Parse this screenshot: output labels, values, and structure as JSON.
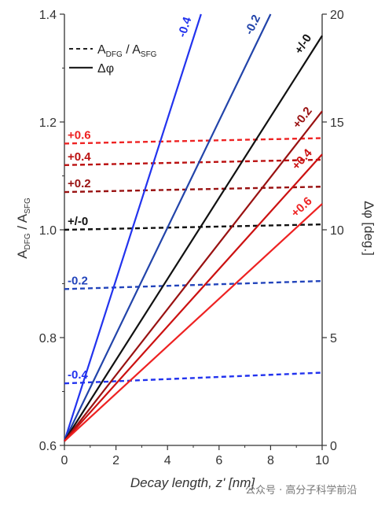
{
  "chart_data": {
    "type": "line",
    "xlabel": "Decay length, z' [nm]",
    "ylabel_left": "A_DFG / A_SFG",
    "ylabel_right": "Δφ [deg.]",
    "xlim": [
      0,
      10
    ],
    "ylim_left": [
      0.6,
      1.4
    ],
    "ylim_right": [
      0,
      20
    ],
    "x_ticks": [
      "0",
      "2",
      "4",
      "6",
      "8",
      "10"
    ],
    "y_ticks_left": [
      "0.6",
      "0.8",
      "1.0",
      "1.2",
      "1.4"
    ],
    "y_ticks_right": [
      "0",
      "5",
      "10",
      "15",
      "20"
    ],
    "legend": {
      "placement": "top-left",
      "entries": [
        {
          "style": "dashed",
          "label": "A_DFG / A_SFG"
        },
        {
          "style": "solid",
          "label": "Δφ"
        }
      ]
    },
    "amplitude_series": [
      {
        "name": "+0.6",
        "color": "#ee2222",
        "x": [
          0,
          10
        ],
        "y": [
          1.16,
          1.17
        ]
      },
      {
        "name": "+0.4",
        "color": "#bb1111",
        "x": [
          0,
          10
        ],
        "y": [
          1.12,
          1.13
        ]
      },
      {
        "name": "+0.2",
        "color": "#991111",
        "x": [
          0,
          10
        ],
        "y": [
          1.07,
          1.08
        ]
      },
      {
        "name": "+/-0",
        "color": "#111111",
        "x": [
          0,
          10
        ],
        "y": [
          1.0,
          1.01
        ]
      },
      {
        "name": "-0.2",
        "color": "#2244bb",
        "x": [
          0,
          10
        ],
        "y": [
          0.89,
          0.905
        ]
      },
      {
        "name": "-0.4",
        "color": "#2233ee",
        "x": [
          0,
          10
        ],
        "y": [
          0.715,
          0.735
        ]
      }
    ],
    "phase_series": [
      {
        "name": "-0.4",
        "color": "#2233ee",
        "x": [
          0,
          5.3
        ],
        "y": [
          0.2,
          20
        ]
      },
      {
        "name": "-0.2",
        "color": "#2244aa",
        "x": [
          0,
          8.0
        ],
        "y": [
          0.2,
          20
        ]
      },
      {
        "name": "+/-0",
        "color": "#111111",
        "x": [
          0,
          10
        ],
        "y": [
          0.2,
          19.0
        ]
      },
      {
        "name": "+0.2",
        "color": "#991111",
        "x": [
          0,
          10
        ],
        "y": [
          0.2,
          15.5
        ]
      },
      {
        "name": "+0.4",
        "color": "#cc1111",
        "x": [
          0,
          10
        ],
        "y": [
          0.2,
          13.5
        ]
      },
      {
        "name": "+0.6",
        "color": "#ee2222",
        "x": [
          0,
          10
        ],
        "y": [
          0.2,
          11.2
        ]
      }
    ]
  },
  "watermark": "公众号 · 高分子科学前沿"
}
